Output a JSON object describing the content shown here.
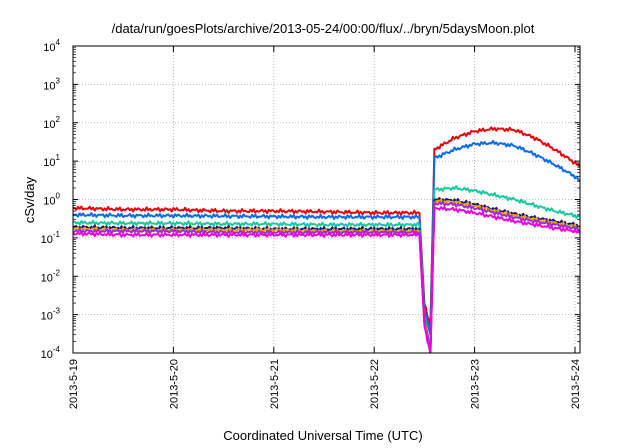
{
  "chart_data": {
    "type": "line",
    "title": "/data/run/goesPlots/archive/2013-05-24/00:00/flux/../bryn/5daysMoon.plot",
    "xlabel": "Coordinated Universal Time (UTC)",
    "ylabel": "cSv/day",
    "y_scale": "log",
    "ylim": [
      0.0001,
      10000
    ],
    "xlim": [
      0,
      5.05
    ],
    "grid": true,
    "x_ticks": [
      {
        "value": 0,
        "label": "2013-5-19"
      },
      {
        "value": 1,
        "label": "2013-5-20"
      },
      {
        "value": 2,
        "label": "2013-5-21"
      },
      {
        "value": 3,
        "label": "2013-5-22"
      },
      {
        "value": 4,
        "label": "2013-5-23"
      },
      {
        "value": 5,
        "label": "2013-5-24"
      }
    ],
    "y_ticks": [
      {
        "value": 0.0001,
        "base": "10",
        "exp": "-4"
      },
      {
        "value": 0.001,
        "base": "10",
        "exp": "-3"
      },
      {
        "value": 0.01,
        "base": "10",
        "exp": "-2"
      },
      {
        "value": 0.1,
        "base": "10",
        "exp": "-1"
      },
      {
        "value": 1,
        "base": "10",
        "exp": "0"
      },
      {
        "value": 10,
        "base": "10",
        "exp": "1"
      },
      {
        "value": 100,
        "base": "10",
        "exp": "2"
      },
      {
        "value": 1000,
        "base": "10",
        "exp": "3"
      },
      {
        "value": 10000,
        "base": "10",
        "exp": "4"
      }
    ],
    "series": [
      {
        "color": "#e8000b",
        "x": [
          0.0,
          0.5,
          1.0,
          1.5,
          2.0,
          2.5,
          3.0,
          3.45,
          3.5,
          3.56,
          3.6,
          3.8,
          4.0,
          4.2,
          4.4,
          4.6,
          4.8,
          5.0,
          5.05
        ],
        "y": [
          0.6,
          0.55,
          0.55,
          0.5,
          0.5,
          0.48,
          0.45,
          0.45,
          0.002,
          0.0005,
          20,
          40,
          60,
          70,
          65,
          40,
          20,
          9,
          7
        ]
      },
      {
        "color": "#0a6ae8",
        "x": [
          0.0,
          0.5,
          1.0,
          1.5,
          2.0,
          2.5,
          3.0,
          3.45,
          3.5,
          3.56,
          3.6,
          3.8,
          4.0,
          4.2,
          4.4,
          4.6,
          4.8,
          5.0,
          5.05
        ],
        "y": [
          0.4,
          0.38,
          0.38,
          0.37,
          0.36,
          0.35,
          0.35,
          0.35,
          0.0015,
          0.0003,
          12,
          20,
          28,
          30,
          25,
          15,
          8,
          4,
          3
        ]
      },
      {
        "color": "#19c8a0",
        "x": [
          0.0,
          0.5,
          1.0,
          1.5,
          2.0,
          2.5,
          3.0,
          3.45,
          3.5,
          3.56,
          3.6,
          3.8,
          4.0,
          4.2,
          4.4,
          4.6,
          4.8,
          5.0,
          5.05
        ],
        "y": [
          0.25,
          0.24,
          0.24,
          0.23,
          0.23,
          0.22,
          0.22,
          0.22,
          0.001,
          0.0001,
          1.8,
          2.0,
          1.7,
          1.3,
          1.0,
          0.7,
          0.5,
          0.38,
          0.35
        ]
      },
      {
        "color": "#1a1a70",
        "x": [
          0.0,
          0.5,
          1.0,
          1.5,
          2.0,
          2.5,
          3.0,
          3.45,
          3.5,
          3.56,
          3.6,
          3.8,
          4.0,
          4.2,
          4.4,
          4.6,
          4.8,
          5.0,
          5.05
        ],
        "y": [
          0.19,
          0.18,
          0.18,
          0.18,
          0.17,
          0.17,
          0.17,
          0.17,
          0.0008,
          0.0001,
          1.0,
          0.95,
          0.75,
          0.55,
          0.42,
          0.33,
          0.27,
          0.22,
          0.2
        ]
      },
      {
        "color": "#f0a000",
        "x": [
          0.0,
          0.5,
          1.0,
          1.5,
          2.0,
          2.5,
          3.0,
          3.45,
          3.5,
          3.56,
          3.6,
          3.8,
          4.0,
          4.2,
          4.4,
          4.6,
          4.8,
          5.0,
          5.05
        ],
        "y": [
          0.17,
          0.16,
          0.16,
          0.16,
          0.16,
          0.15,
          0.15,
          0.15,
          0.0007,
          0.0001,
          0.9,
          0.85,
          0.68,
          0.5,
          0.38,
          0.3,
          0.24,
          0.2,
          0.18
        ]
      },
      {
        "color": "#9a2fd6",
        "x": [
          0.0,
          0.5,
          1.0,
          1.5,
          2.0,
          2.5,
          3.0,
          3.45,
          3.5,
          3.56,
          3.6,
          3.8,
          4.0,
          4.2,
          4.4,
          4.6,
          4.8,
          5.0,
          5.05
        ],
        "y": [
          0.15,
          0.15,
          0.15,
          0.14,
          0.14,
          0.14,
          0.14,
          0.14,
          0.0006,
          0.0001,
          0.8,
          0.75,
          0.6,
          0.45,
          0.34,
          0.27,
          0.22,
          0.18,
          0.16
        ]
      },
      {
        "color": "#ee00dd",
        "x": [
          0.0,
          0.5,
          1.0,
          1.5,
          2.0,
          2.5,
          3.0,
          3.45,
          3.5,
          3.56,
          3.6,
          3.8,
          4.0,
          4.2,
          4.4,
          4.6,
          4.8,
          5.0,
          5.05
        ],
        "y": [
          0.13,
          0.12,
          0.12,
          0.12,
          0.12,
          0.12,
          0.12,
          0.12,
          0.0005,
          0.0001,
          0.6,
          0.55,
          0.45,
          0.35,
          0.27,
          0.22,
          0.18,
          0.15,
          0.13
        ]
      }
    ]
  }
}
